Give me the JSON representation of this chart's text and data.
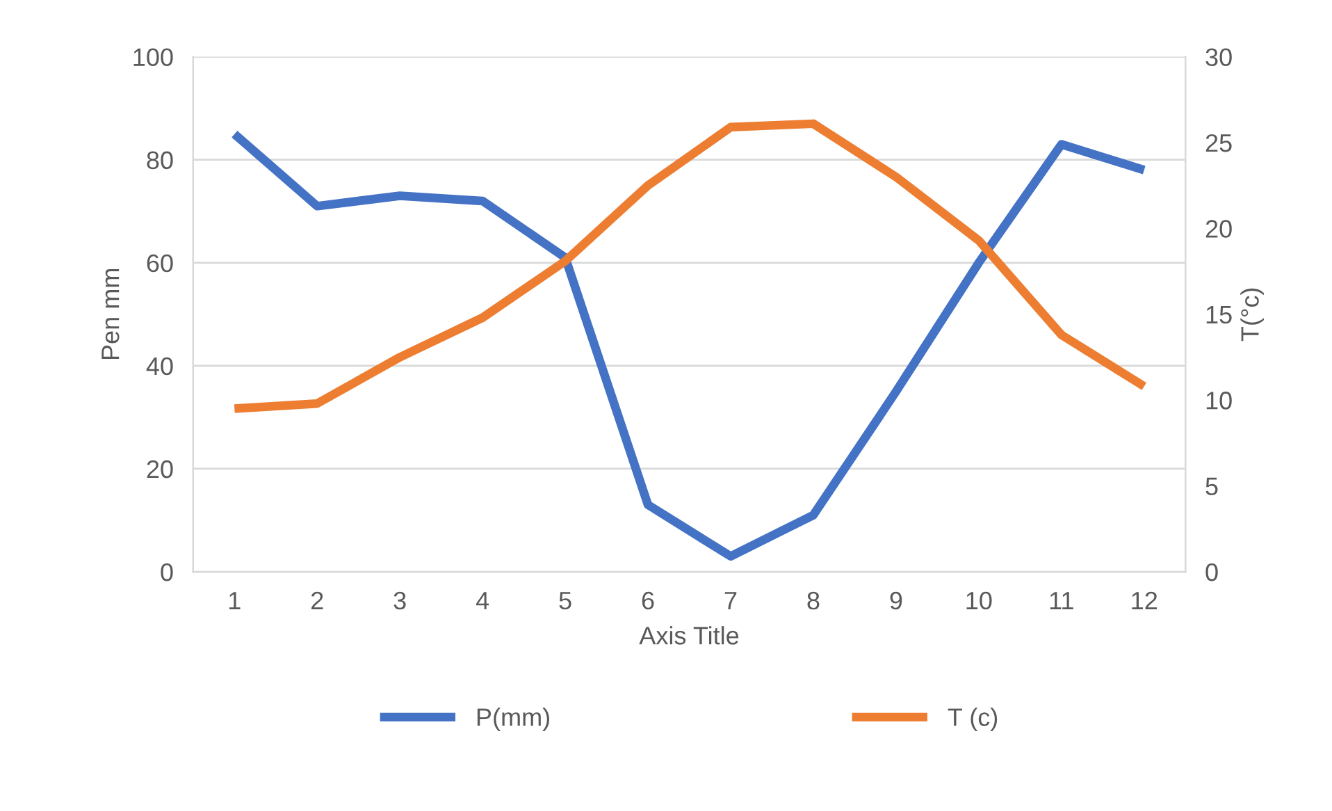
{
  "chart_data": {
    "type": "line",
    "xlabel": "Axis Title",
    "ylabel": "Pen mm",
    "y2label": "T(°c)",
    "categories": [
      "1",
      "2",
      "3",
      "4",
      "5",
      "6",
      "7",
      "8",
      "9",
      "10",
      "11",
      "12"
    ],
    "series": [
      {
        "name": "P(mm)",
        "color": "#4472c4",
        "values": [
          85,
          71,
          73,
          72,
          61,
          13,
          3,
          11,
          35,
          60,
          83,
          78
        ]
      },
      {
        "name": "T (c)",
        "color": "#ed7d31",
        "axis": "y2",
        "values": [
          9.5,
          9.8,
          12.5,
          14.8,
          18.1,
          22.5,
          25.9,
          26.1,
          23.0,
          19.3,
          13.8,
          10.8
        ]
      }
    ],
    "ylim": [
      0,
      100
    ],
    "yticks": [
      0,
      20,
      40,
      60,
      80,
      100
    ],
    "y2lim": [
      0,
      30
    ],
    "y2ticks": [
      0,
      5,
      10,
      15,
      20,
      25,
      30
    ],
    "grid": "y",
    "legend": "bottom",
    "marker": "none",
    "line_style": "solid"
  }
}
